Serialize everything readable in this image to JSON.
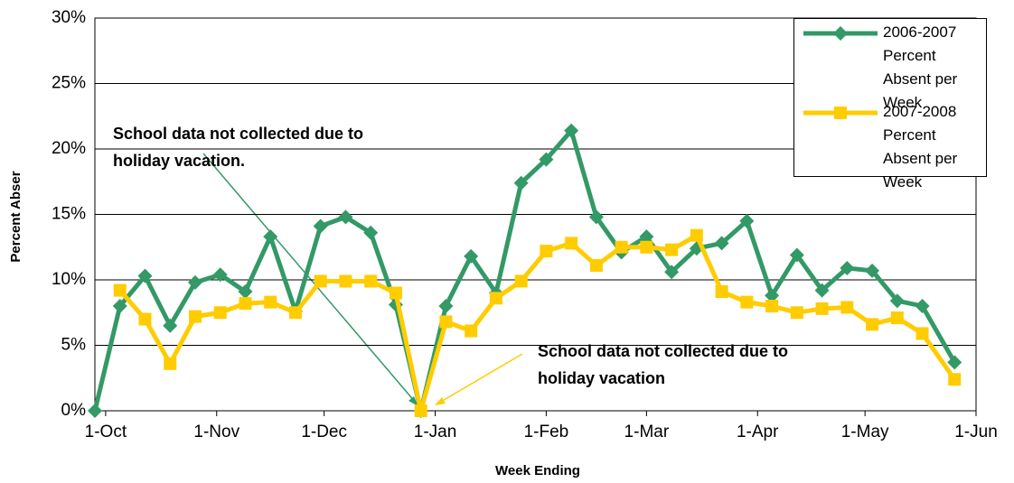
{
  "chart_data": {
    "type": "line",
    "x_label": "Week Ending",
    "y_label": "Percent Abser",
    "x": [
      -3,
      4,
      11,
      18,
      25,
      32,
      39,
      46,
      53,
      60,
      67,
      74,
      81,
      88,
      95,
      102,
      109,
      116,
      123,
      130,
      137,
      144,
      151,
      158,
      165,
      172,
      179,
      186,
      193,
      200,
      207,
      214,
      221,
      228,
      237
    ],
    "series": [
      {
        "name": "2006-2007 Percent Absent per Week",
        "color": "#339966",
        "marker": "diamond",
        "values": [
          0,
          8.0,
          10.3,
          6.5,
          9.8,
          10.4,
          9.1,
          13.3,
          7.6,
          14.1,
          14.8,
          13.6,
          8.1,
          0,
          8.0,
          11.8,
          9.0,
          17.4,
          19.2,
          21.4,
          14.8,
          12.1,
          13.3,
          10.6,
          12.4,
          12.8,
          14.5,
          8.8,
          11.9,
          9.2,
          10.9,
          10.7,
          8.4,
          8.0,
          3.7
        ]
      },
      {
        "name": "2007-2008 Percent Absent per Week",
        "color": "#ffcc00",
        "marker": "square",
        "values": [
          null,
          9.2,
          7.0,
          3.6,
          7.2,
          7.5,
          8.2,
          8.3,
          7.5,
          9.9,
          9.9,
          9.9,
          9.0,
          0,
          6.8,
          6.1,
          8.6,
          9.9,
          12.2,
          12.8,
          11.1,
          12.5,
          12.5,
          12.3,
          13.4,
          9.1,
          8.3,
          8.0,
          7.5,
          7.8,
          7.9,
          6.6,
          7.1,
          5.9,
          2.4
        ]
      }
    ],
    "xlim": [
      -3,
      243
    ],
    "xticks": [
      {
        "value": 0,
        "label": "1-Oct"
      },
      {
        "value": 31,
        "label": "1-Nov"
      },
      {
        "value": 61,
        "label": "1-Dec"
      },
      {
        "value": 92,
        "label": "1-Jan"
      },
      {
        "value": 123,
        "label": "1-Feb"
      },
      {
        "value": 151,
        "label": "1-Mar"
      },
      {
        "value": 182,
        "label": "1-Apr"
      },
      {
        "value": 212,
        "label": "1-May"
      },
      {
        "value": 243,
        "label": "1-Jun"
      }
    ],
    "ylim": [
      0,
      30
    ],
    "yticks": [
      {
        "value": 0,
        "label": "0%"
      },
      {
        "value": 5,
        "label": "5%"
      },
      {
        "value": 10,
        "label": "10%"
      },
      {
        "value": 15,
        "label": "15%"
      },
      {
        "value": 20,
        "label": "20%"
      },
      {
        "value": 25,
        "label": "25%"
      },
      {
        "value": 30,
        "label": "30%"
      }
    ],
    "grid": true,
    "legend": "top-right",
    "annotations": [
      {
        "text": "School data not collected due to holiday vacation.",
        "color": "#339966"
      },
      {
        "text": "School data not collected due to holiday vacation",
        "color": "#ffcc00"
      }
    ]
  }
}
